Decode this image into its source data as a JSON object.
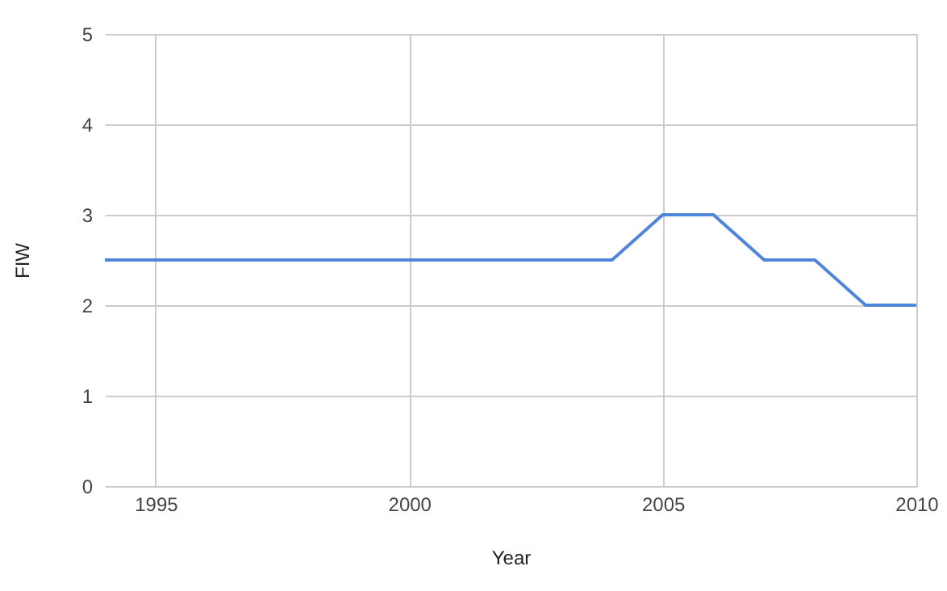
{
  "chart_data": {
    "type": "line",
    "xlabel": "Year",
    "ylabel": "FIW",
    "x": [
      1994,
      1995,
      1996,
      1997,
      1998,
      1999,
      2000,
      2001,
      2002,
      2003,
      2004,
      2005,
      2006,
      2007,
      2008,
      2009,
      2010
    ],
    "series": [
      {
        "color": "#4f86d9",
        "values": [
          2.5,
          2.5,
          2.5,
          2.5,
          2.5,
          2.5,
          2.5,
          2.5,
          2.5,
          2.5,
          2.5,
          3,
          3,
          2.5,
          2.5,
          2,
          2
        ]
      }
    ],
    "xlim": [
      1994,
      2010
    ],
    "xticks": [
      1995,
      2000,
      2005,
      2010
    ],
    "ylim": [
      0,
      5
    ],
    "yticks": [
      0,
      1,
      2,
      3,
      4,
      5
    ],
    "grid": true,
    "marker": "none",
    "line_style": "solid"
  }
}
